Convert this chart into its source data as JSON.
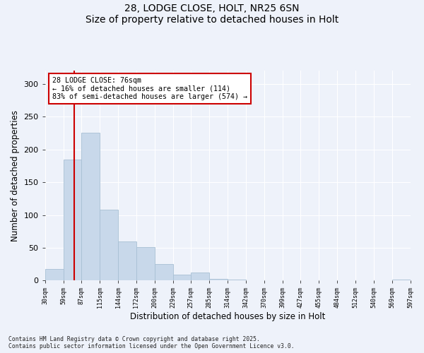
{
  "title_line1": "28, LODGE CLOSE, HOLT, NR25 6SN",
  "title_line2": "Size of property relative to detached houses in Holt",
  "xlabel": "Distribution of detached houses by size in Holt",
  "ylabel": "Number of detached properties",
  "bar_color": "#c8d8ea",
  "bar_edge_color": "#a8c0d4",
  "background_color": "#eef2fa",
  "grid_color": "#ffffff",
  "vline_color": "#cc0000",
  "vline_bin": 1.655,
  "annotation_text": "28 LODGE CLOSE: 76sqm\n← 16% of detached houses are smaller (114)\n83% of semi-detached houses are larger (574) →",
  "annotation_box_color": "#ffffff",
  "annotation_border_color": "#cc0000",
  "bar_heights": [
    18,
    185,
    225,
    108,
    60,
    51,
    25,
    9,
    12,
    3,
    2,
    0,
    0,
    0,
    0,
    0,
    0,
    0,
    0,
    2
  ],
  "ylim": [
    0,
    320
  ],
  "yticks": [
    0,
    50,
    100,
    150,
    200,
    250,
    300
  ],
  "footnote": "Contains HM Land Registry data © Crown copyright and database right 2025.\nContains public sector information licensed under the Open Government Licence v3.0.",
  "tick_labels": [
    "30sqm",
    "59sqm",
    "87sqm",
    "115sqm",
    "144sqm",
    "172sqm",
    "200sqm",
    "229sqm",
    "257sqm",
    "285sqm",
    "314sqm",
    "342sqm",
    "370sqm",
    "399sqm",
    "427sqm",
    "455sqm",
    "484sqm",
    "512sqm",
    "540sqm",
    "569sqm",
    "597sqm"
  ],
  "n_bars": 20
}
